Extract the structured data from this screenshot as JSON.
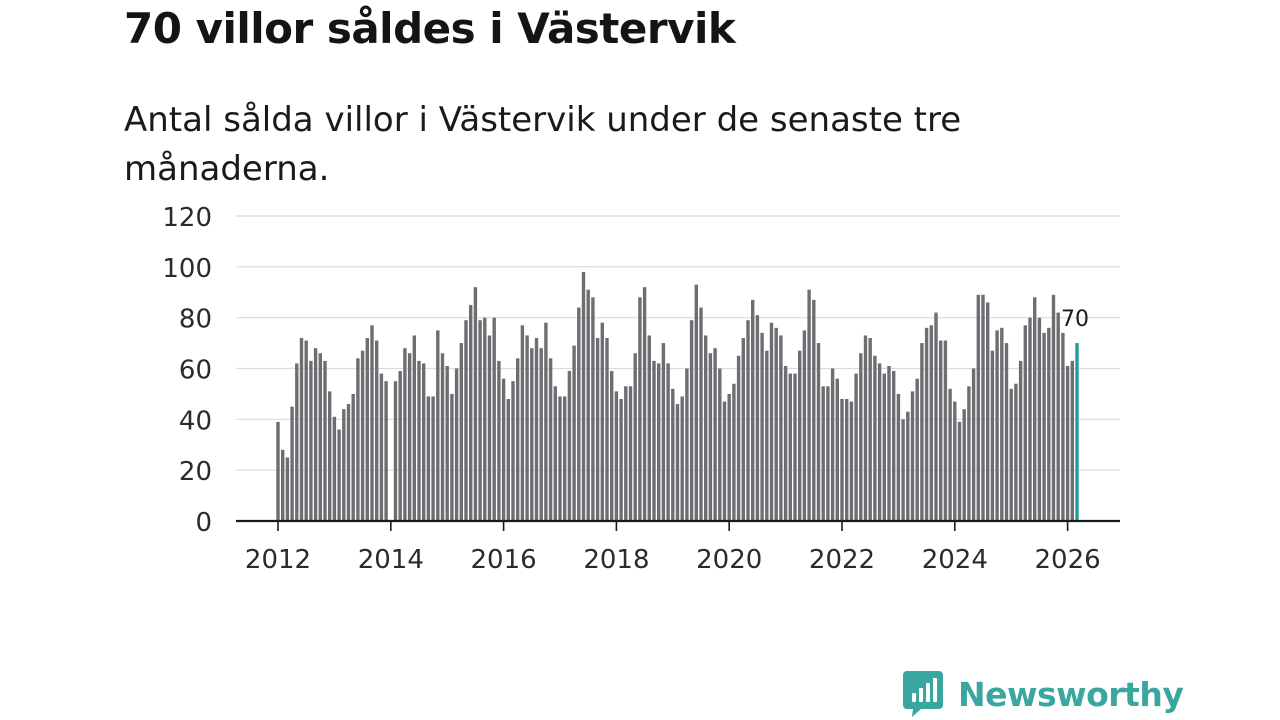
{
  "header": {
    "title": "70 villor såldes i Västervik",
    "subtitle": "Antal sålda villor i Västervik under de senaste tre månaderna."
  },
  "brand": {
    "name": "Newsworthy"
  },
  "colors": {
    "bar": "#6d6d72",
    "highlight": "#1f9e98",
    "grid": "#dcdcdc",
    "axis": "#1a1a1a",
    "brand": "#3aa6a0"
  },
  "chart_data": {
    "type": "bar",
    "title": "",
    "xlabel": "",
    "ylabel": "",
    "ylim": [
      0,
      120
    ],
    "yticks": [
      0,
      20,
      40,
      60,
      80,
      100,
      120
    ],
    "x_tick_labels": [
      "2012",
      "2014",
      "2016",
      "2018",
      "2020",
      "2022",
      "2024",
      "2026"
    ],
    "start": "2012-01",
    "end": "2026-03",
    "x": [
      "2012-01",
      "2012-02",
      "2012-03",
      "2012-04",
      "2012-05",
      "2012-06",
      "2012-07",
      "2012-08",
      "2012-09",
      "2012-10",
      "2012-11",
      "2012-12",
      "2013-01",
      "2013-02",
      "2013-03",
      "2013-04",
      "2013-05",
      "2013-06",
      "2013-07",
      "2013-08",
      "2013-09",
      "2013-10",
      "2013-11",
      "2013-12",
      "2014-01",
      "2014-02",
      "2014-03",
      "2014-04",
      "2014-05",
      "2014-06",
      "2014-07",
      "2014-08",
      "2014-09",
      "2014-10",
      "2014-11",
      "2014-12",
      "2015-01",
      "2015-02",
      "2015-03",
      "2015-04",
      "2015-05",
      "2015-06",
      "2015-07",
      "2015-08",
      "2015-09",
      "2015-10",
      "2015-11",
      "2015-12",
      "2016-01",
      "2016-02",
      "2016-03",
      "2016-04",
      "2016-05",
      "2016-06",
      "2016-07",
      "2016-08",
      "2016-09",
      "2016-10",
      "2016-11",
      "2016-12",
      "2017-01",
      "2017-02",
      "2017-03",
      "2017-04",
      "2017-05",
      "2017-06",
      "2017-07",
      "2017-08",
      "2017-09",
      "2017-10",
      "2017-11",
      "2017-12",
      "2018-01",
      "2018-02",
      "2018-03",
      "2018-04",
      "2018-05",
      "2018-06",
      "2018-07",
      "2018-08",
      "2018-09",
      "2018-10",
      "2018-11",
      "2018-12",
      "2019-01",
      "2019-02",
      "2019-03",
      "2019-04",
      "2019-05",
      "2019-06",
      "2019-07",
      "2019-08",
      "2019-09",
      "2019-10",
      "2019-11",
      "2019-12",
      "2020-01",
      "2020-02",
      "2020-03",
      "2020-04",
      "2020-05",
      "2020-06",
      "2020-07",
      "2020-08",
      "2020-09",
      "2020-10",
      "2020-11",
      "2020-12",
      "2021-01",
      "2021-02",
      "2021-03",
      "2021-04",
      "2021-05",
      "2021-06",
      "2021-07",
      "2021-08",
      "2021-09",
      "2021-10",
      "2021-11",
      "2021-12",
      "2022-01",
      "2022-02",
      "2022-03",
      "2022-04",
      "2022-05",
      "2022-06",
      "2022-07",
      "2022-08",
      "2022-09",
      "2022-10",
      "2022-11",
      "2022-12",
      "2023-01",
      "2023-02",
      "2023-03",
      "2023-04",
      "2023-05",
      "2023-06",
      "2023-07",
      "2023-08",
      "2023-09",
      "2023-10",
      "2023-11",
      "2023-12",
      "2024-01",
      "2024-02",
      "2024-03",
      "2024-04",
      "2024-05",
      "2024-06",
      "2024-07",
      "2024-08",
      "2024-09",
      "2024-10",
      "2024-11",
      "2024-12",
      "2025-01",
      "2025-02",
      "2025-03",
      "2025-04",
      "2025-05",
      "2025-06",
      "2025-07",
      "2025-08",
      "2025-09",
      "2025-10",
      "2025-11",
      "2025-12",
      "2026-01",
      "2026-02",
      "2026-03"
    ],
    "series": [
      {
        "name": "Antal sålda villor",
        "values": [
          39,
          28,
          25,
          45,
          62,
          72,
          71,
          63,
          68,
          66,
          63,
          51,
          41,
          36,
          44,
          46,
          50,
          64,
          67,
          72,
          77,
          71,
          58,
          55,
          null,
          55,
          59,
          68,
          66,
          73,
          63,
          62,
          49,
          49,
          75,
          66,
          61,
          50,
          60,
          70,
          79,
          85,
          92,
          79,
          80,
          73,
          80,
          63,
          56,
          48,
          55,
          64,
          77,
          73,
          68,
          72,
          68,
          78,
          64,
          53,
          49,
          49,
          59,
          69,
          84,
          98,
          91,
          88,
          72,
          78,
          72,
          59,
          51,
          48,
          53,
          53,
          66,
          88,
          92,
          73,
          63,
          62,
          70,
          62,
          52,
          46,
          49,
          60,
          79,
          93,
          84,
          73,
          66,
          68,
          60,
          47,
          50,
          54,
          65,
          72,
          79,
          87,
          81,
          74,
          67,
          78,
          76,
          73,
          61,
          58,
          58,
          67,
          75,
          91,
          87,
          70,
          53,
          53,
          60,
          56,
          48,
          48,
          47,
          58,
          66,
          73,
          72,
          65,
          62,
          58,
          61,
          59,
          50,
          40,
          43,
          51,
          56,
          70,
          76,
          77,
          82,
          71,
          71,
          52,
          47,
          39,
          44,
          53,
          60,
          89,
          89,
          86,
          67,
          75,
          76,
          70,
          52,
          54,
          63,
          77,
          80,
          88,
          80,
          74,
          76,
          89,
          82,
          74,
          61,
          63,
          70
        ]
      }
    ],
    "highlight": {
      "x": "2026-03",
      "value": 70,
      "label": "70"
    }
  }
}
